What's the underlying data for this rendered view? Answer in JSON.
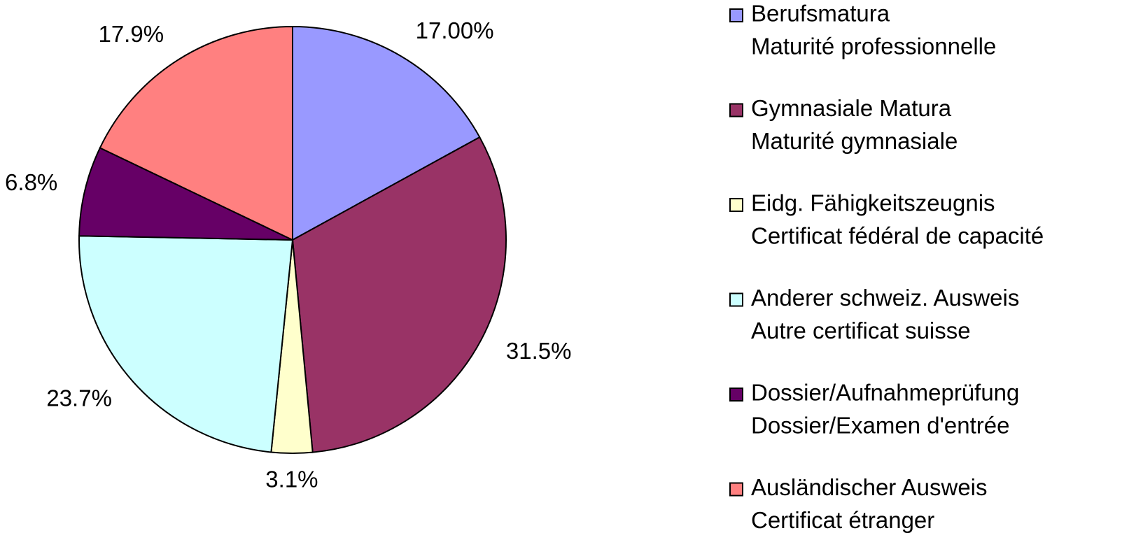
{
  "chart_data": {
    "type": "pie",
    "categories": [
      [
        "Berufsmatura",
        "Maturité professionnelle"
      ],
      [
        "Gymnasiale Matura",
        "Maturité gymnasiale"
      ],
      [
        "Eidg. Fähigkeitszeugnis",
        "Certificat fédéral de capacité"
      ],
      [
        "Anderer schweiz. Ausweis",
        "Autre certificat suisse"
      ],
      [
        "Dossier/Aufnahmeprüfung",
        "Dossier/Examen d'entrée"
      ],
      [
        "Ausländischer Ausweis",
        "Certificat étranger"
      ]
    ],
    "values": [
      17.0,
      31.5,
      3.1,
      23.7,
      6.8,
      17.9
    ],
    "value_labels": [
      "17.00%",
      "31.5%",
      "3.1%",
      "23.7%",
      "6.8%",
      "17.9%"
    ],
    "colors": [
      "#9999ff",
      "#993366",
      "#ffffcc",
      "#ccffff",
      "#660066",
      "#ff8080"
    ],
    "legend": "right"
  }
}
